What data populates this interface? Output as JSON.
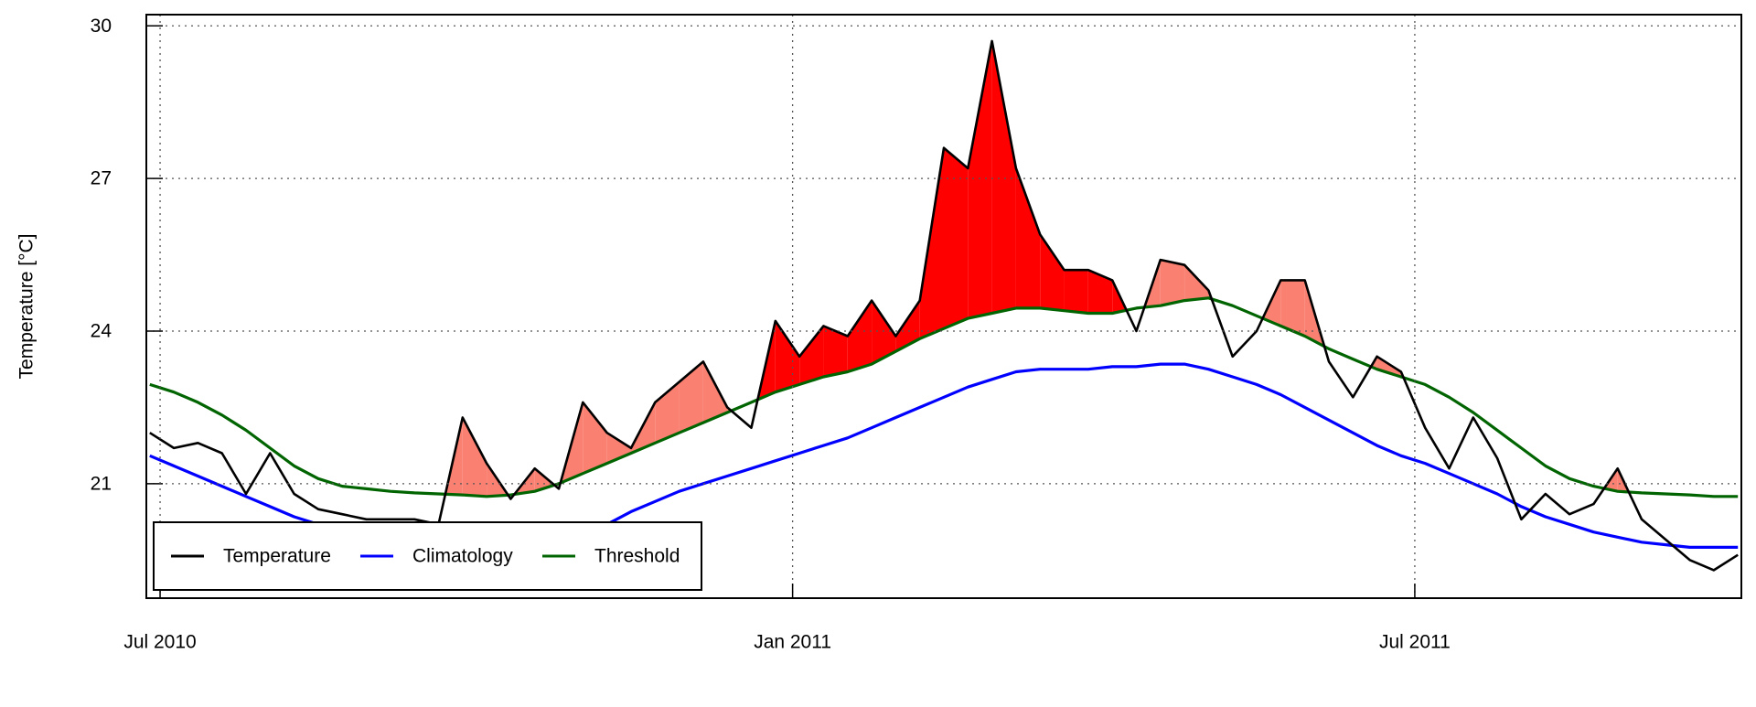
{
  "chart_data": {
    "type": "line",
    "ylabel": "Temperature [°C]",
    "x": [
      "2010-06-28",
      "2010-07-05",
      "2010-07-12",
      "2010-07-19",
      "2010-07-26",
      "2010-08-02",
      "2010-08-09",
      "2010-08-16",
      "2010-08-23",
      "2010-08-30",
      "2010-09-06",
      "2010-09-13",
      "2010-09-20",
      "2010-09-27",
      "2010-10-04",
      "2010-10-11",
      "2010-10-18",
      "2010-10-25",
      "2010-11-01",
      "2010-11-08",
      "2010-11-15",
      "2010-11-22",
      "2010-11-29",
      "2010-12-06",
      "2010-12-13",
      "2010-12-20",
      "2010-12-27",
      "2011-01-03",
      "2011-01-10",
      "2011-01-17",
      "2011-01-24",
      "2011-01-31",
      "2011-02-07",
      "2011-02-14",
      "2011-02-21",
      "2011-02-28",
      "2011-03-07",
      "2011-03-14",
      "2011-03-21",
      "2011-03-28",
      "2011-04-04",
      "2011-04-11",
      "2011-04-18",
      "2011-04-25",
      "2011-05-02",
      "2011-05-09",
      "2011-05-16",
      "2011-05-23",
      "2011-05-30",
      "2011-06-06",
      "2011-06-13",
      "2011-06-20",
      "2011-06-27",
      "2011-07-04",
      "2011-07-11",
      "2011-07-18",
      "2011-07-25",
      "2011-08-01",
      "2011-08-08",
      "2011-08-15",
      "2011-08-22",
      "2011-08-29",
      "2011-09-05",
      "2011-09-12",
      "2011-09-19",
      "2011-09-26",
      "2011-10-03"
    ],
    "series": [
      {
        "name": "Temperature",
        "color": "#000000",
        "values": [
          22.0,
          21.7,
          21.8,
          21.6,
          20.8,
          21.6,
          20.8,
          20.5,
          20.4,
          20.3,
          20.3,
          20.3,
          20.2,
          22.3,
          21.4,
          20.7,
          21.3,
          20.9,
          22.6,
          22.0,
          21.7,
          22.6,
          23.0,
          23.4,
          22.5,
          22.1,
          24.2,
          23.5,
          24.1,
          23.9,
          24.6,
          23.9,
          24.6,
          27.6,
          27.2,
          29.7,
          27.2,
          25.9,
          25.2,
          25.2,
          25.0,
          24.0,
          25.4,
          25.3,
          24.8,
          23.5,
          24.0,
          25.0,
          25.0,
          23.4,
          22.7,
          23.5,
          23.2,
          22.1,
          21.3,
          22.3,
          21.5,
          20.3,
          20.8,
          20.4,
          20.6,
          21.3,
          20.3,
          19.9,
          19.5,
          19.3,
          19.6
        ]
      },
      {
        "name": "Climatology",
        "color": "#0000ff",
        "values": [
          21.55,
          21.35,
          21.15,
          20.95,
          20.75,
          20.55,
          20.35,
          20.2,
          20.05,
          19.9,
          19.8,
          19.7,
          19.65,
          19.6,
          19.6,
          19.65,
          19.75,
          19.85,
          20.0,
          20.2,
          20.45,
          20.65,
          20.85,
          21.0,
          21.15,
          21.3,
          21.45,
          21.6,
          21.75,
          21.9,
          22.1,
          22.3,
          22.5,
          22.7,
          22.9,
          23.05,
          23.2,
          23.25,
          23.25,
          23.25,
          23.3,
          23.3,
          23.35,
          23.35,
          23.25,
          23.1,
          22.95,
          22.75,
          22.5,
          22.25,
          22.0,
          21.75,
          21.55,
          21.4,
          21.2,
          21.0,
          20.8,
          20.55,
          20.35,
          20.2,
          20.05,
          19.95,
          19.85,
          19.8,
          19.75,
          19.75,
          19.75
        ]
      },
      {
        "name": "Threshold",
        "color": "#006400",
        "values": [
          22.95,
          22.8,
          22.6,
          22.35,
          22.05,
          21.7,
          21.35,
          21.1,
          20.95,
          20.9,
          20.85,
          20.82,
          20.8,
          20.78,
          20.75,
          20.78,
          20.85,
          21.0,
          21.2,
          21.4,
          21.6,
          21.8,
          22.0,
          22.2,
          22.4,
          22.6,
          22.8,
          22.95,
          23.1,
          23.2,
          23.35,
          23.6,
          23.85,
          24.05,
          24.25,
          24.35,
          24.45,
          24.45,
          24.4,
          24.35,
          24.35,
          24.45,
          24.5,
          24.6,
          24.65,
          24.5,
          24.3,
          24.1,
          23.9,
          23.65,
          23.45,
          23.25,
          23.1,
          22.95,
          22.7,
          22.4,
          22.05,
          21.7,
          21.35,
          21.1,
          20.95,
          20.85,
          20.82,
          20.8,
          20.78,
          20.75,
          20.75
        ]
      }
    ],
    "event_color": "#fa8072",
    "peak_event": {
      "start": "2010-12-20",
      "end": "2011-04-11",
      "color": "#ff0000"
    },
    "xlim": [
      "2010-06-27",
      "2011-10-04"
    ],
    "xticks": [
      {
        "value": "2010-07-01",
        "label": "Jul 2010"
      },
      {
        "value": "2011-01-01",
        "label": "Jan 2011"
      },
      {
        "value": "2011-07-01",
        "label": "Jul 2011"
      }
    ],
    "ylim": [
      18.75,
      30.22
    ],
    "yticks": [
      21,
      24,
      27,
      30
    ],
    "grid": true,
    "legend": "bottomleft"
  }
}
